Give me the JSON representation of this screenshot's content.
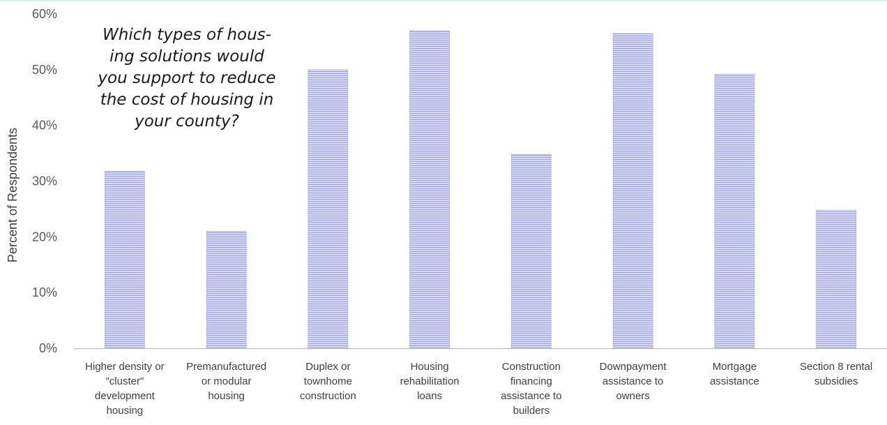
{
  "chart_data": {
    "type": "bar",
    "title_lines": [
      "Which types of hous-",
      "ing solutions would",
      "you support to reduce",
      "the cost of housing in",
      "your county?"
    ],
    "ylabel": "Percent of Respondents",
    "xlabel": "",
    "ylim": [
      0,
      60
    ],
    "yticks": [
      "0%",
      "10%",
      "20%",
      "30%",
      "40%",
      "50%",
      "60%"
    ],
    "grid": false,
    "legend": "none",
    "categories": [
      [
        "Higher density or",
        "\"cluster\"",
        "development",
        "housing"
      ],
      [
        "Premanufactured",
        "or modular",
        "housing"
      ],
      [
        "Duplex or",
        "townhome",
        "construction"
      ],
      [
        "Housing",
        "rehabilitation",
        "loans"
      ],
      [
        "Construction",
        "financing",
        "assistance to",
        "builders"
      ],
      [
        "Downpayment",
        "assistance to",
        "owners"
      ],
      [
        "Mortgage",
        "assistance"
      ],
      [
        "Section 8 rental",
        "subsidies"
      ]
    ],
    "values": [
      31.8,
      21.0,
      50.0,
      57.0,
      34.8,
      56.5,
      49.2,
      24.8
    ]
  },
  "colors": {
    "bar_fill": "#d6d8f4",
    "bar_stripe": "#9ea3de",
    "axis": "#bfbfbf",
    "top_rule": "#dcefe8"
  }
}
